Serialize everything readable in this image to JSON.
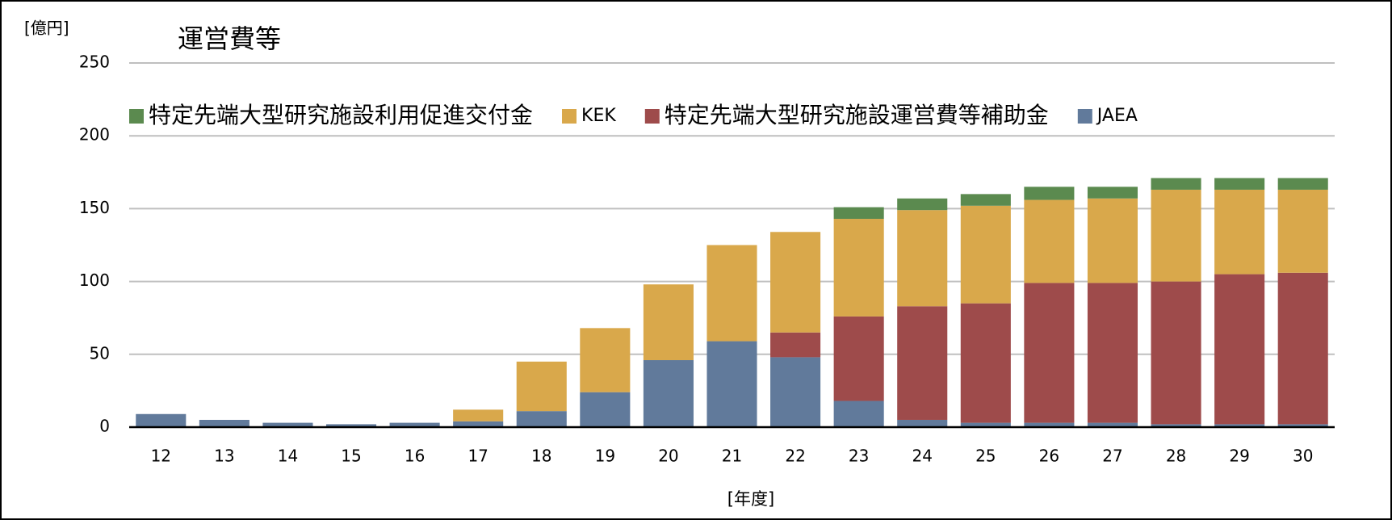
{
  "chart_data": {
    "type": "stacked_bar",
    "title": "運営費等",
    "y_axis_label": "[億円]",
    "x_axis_label": "[年度]",
    "categories": [
      "12",
      "13",
      "14",
      "15",
      "16",
      "17",
      "18",
      "19",
      "20",
      "21",
      "22",
      "23",
      "24",
      "25",
      "26",
      "27",
      "28",
      "29",
      "30"
    ],
    "series": [
      {
        "name": "特定先端大型研究施設利用促進交付金",
        "color": "#5b8a4f",
        "values": [
          null,
          null,
          null,
          null,
          null,
          null,
          null,
          null,
          null,
          null,
          null,
          8,
          8,
          8,
          9,
          8,
          8,
          8,
          8
        ]
      },
      {
        "name": "KEK",
        "color": "#d9a84b",
        "values": [
          null,
          null,
          null,
          null,
          null,
          8,
          34,
          44,
          52,
          66,
          69,
          67,
          66,
          67,
          57,
          58,
          63,
          58,
          57
        ]
      },
      {
        "name": "特定先端大型研究施設運営費等補助金",
        "color": "#9e4b4b",
        "values": [
          null,
          null,
          null,
          null,
          null,
          null,
          null,
          null,
          null,
          null,
          17,
          58,
          78,
          82,
          96,
          96,
          98,
          103,
          104
        ]
      },
      {
        "name": "JAEA",
        "color": "#617a9b",
        "values": [
          9,
          5,
          3,
          2,
          3,
          4,
          11,
          24,
          46,
          59,
          48,
          18,
          5,
          3,
          3,
          3,
          2,
          2,
          2
        ]
      }
    ],
    "ylim": [
      0,
      250
    ],
    "yticks": [
      0,
      50,
      100,
      150,
      200,
      250
    ],
    "grid": true,
    "legend": "top"
  }
}
